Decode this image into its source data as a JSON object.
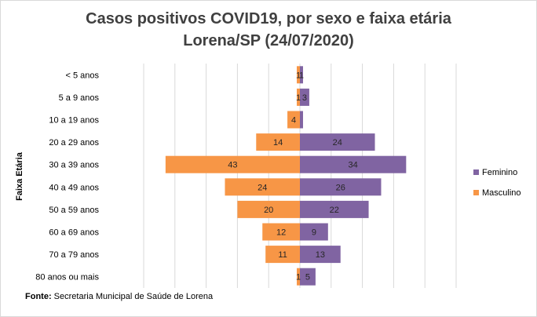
{
  "chart_data": {
    "type": "bar",
    "orientation": "horizontal",
    "title_line1": "Casos positivos  COVID19, por sexo e faixa etária",
    "title_line2": "Lorena/SP (24/07/2020)",
    "ylabel": "Faixa Etária",
    "categories": [
      "< 5 anos",
      "5 a 9 anos",
      "10 a 19 anos",
      "20 a 29 anos",
      "30 a 39 anos",
      "40 a 49 anos",
      "50 a 59 anos",
      "60 a 69 anos",
      "70 a 79 anos",
      "80 anos ou mais"
    ],
    "series": [
      {
        "name": "Feminino",
        "color": "#8064a2",
        "side": "right",
        "values": [
          1,
          3,
          1,
          24,
          34,
          26,
          22,
          9,
          13,
          5
        ],
        "labels": [
          "1",
          "3",
          "",
          "24",
          "34",
          "26",
          "22",
          "9",
          "13",
          "5"
        ]
      },
      {
        "name": "Masculino",
        "color": "#f79646",
        "side": "left",
        "values": [
          1,
          1,
          4,
          14,
          43,
          24,
          20,
          12,
          11,
          1
        ],
        "labels": [
          "1",
          "1",
          "4",
          "14",
          "43",
          "24",
          "20",
          "12",
          "11",
          "1"
        ]
      }
    ],
    "xlim": [
      -50,
      50
    ],
    "grid": true,
    "legend_position": "right"
  },
  "source": {
    "label": "Fonte:",
    "text": "Secretaria Municipal de Saúde de Lorena"
  }
}
